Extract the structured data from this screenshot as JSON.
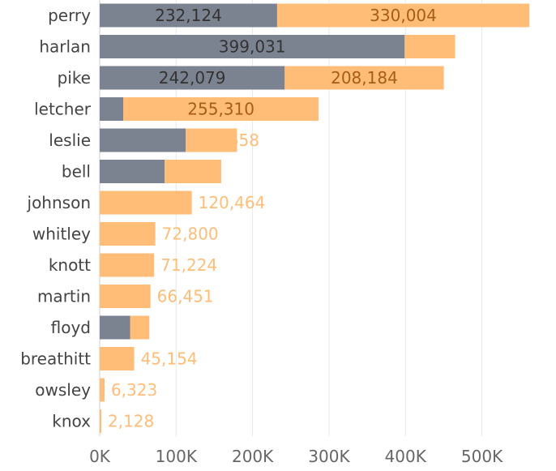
{
  "chart_data": {
    "type": "bar",
    "orientation": "horizontal",
    "stacked": true,
    "categories": [
      "perry",
      "harlan",
      "pike",
      "letcher",
      "leslie",
      "bell",
      "johnson",
      "whitley",
      "knott",
      "martin",
      "floyd",
      "breathitt",
      "owsley",
      "knox"
    ],
    "series": [
      {
        "color": "#7b8290",
        "label_color": "#333333",
        "values": [
          232124,
          399031,
          242079,
          31000,
          112658,
          85000,
          0,
          0,
          0,
          0,
          40000,
          0,
          0,
          0
        ],
        "data_labels": [
          "232,124",
          "399,031",
          "242,079",
          "",
          "112,658",
          "",
          "",
          "",
          "",
          "",
          "",
          "",
          "",
          ""
        ]
      },
      {
        "color": "#ffbd78",
        "label_color": "#a85d16",
        "values": [
          330004,
          66000,
          208184,
          255310,
          67000,
          74000,
          120464,
          72800,
          71224,
          66451,
          25000,
          45154,
          6323,
          2128
        ],
        "data_labels": [
          "330,004",
          "",
          "208,184",
          "255,310",
          "",
          "",
          "120,464",
          "72,800",
          "71,224",
          "66,451",
          "",
          "45,154",
          "6,323",
          "2,128"
        ]
      }
    ],
    "outside_label_color": "#ffbd78",
    "xlim": [
      0,
      580000
    ],
    "xticks": [
      0,
      100000,
      200000,
      300000,
      400000,
      500000
    ],
    "xtick_labels": [
      "0K",
      "100K",
      "200K",
      "300K",
      "400K",
      "500K"
    ],
    "grid": true,
    "legend": "none"
  }
}
